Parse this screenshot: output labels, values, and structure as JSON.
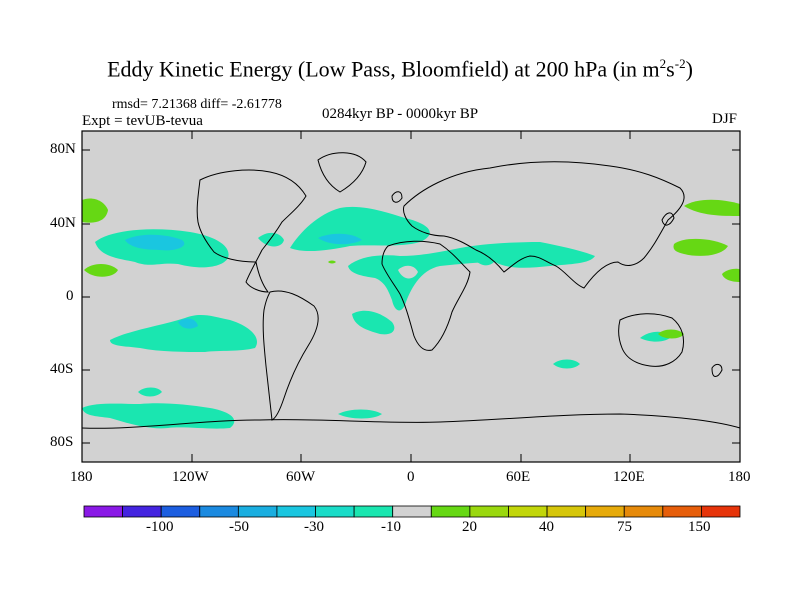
{
  "title": {
    "main": "Eddy Kinetic Energy (Low Pass, Bloomfield) at 200 hPa (in m",
    "sup1": "2",
    "mid": "s",
    "sup2": "-2",
    "end": ")"
  },
  "subtitle": {
    "rmsd": "rmsd= 7.21368 diff= -2.61778",
    "experiment": "Expt = tevUB-tevua",
    "period": "0284kyr BP - 0000kyr BP",
    "season": "DJF"
  },
  "axes": {
    "lat_labels": [
      "80N",
      "40N",
      "0",
      "40S",
      "80S"
    ],
    "lon_labels": [
      "180",
      "120W",
      "60W",
      "0",
      "60E",
      "120E",
      "180"
    ]
  },
  "colorbar": {
    "colors": [
      "#8a19e6",
      "#4424e0",
      "#1c5ee0",
      "#1b8ae0",
      "#1aaee0",
      "#1ac6e0",
      "#1adcc8",
      "#1ae6b0",
      "#d2d2d2",
      "#66d814",
      "#9ad80e",
      "#c2d60a",
      "#d6c60a",
      "#e6aa0a",
      "#e68a0a",
      "#e65e0a",
      "#e6340a"
    ],
    "labels": [
      "-100",
      "-50",
      "-30",
      "-10",
      "20",
      "40",
      "75",
      "150"
    ]
  },
  "map_colors": {
    "ocean_land_bg": "#d2d2d2",
    "negative_fill": "#1ae6b0",
    "deep_negative_fill": "#1ac6e0",
    "positive_fill": "#66d814"
  }
}
